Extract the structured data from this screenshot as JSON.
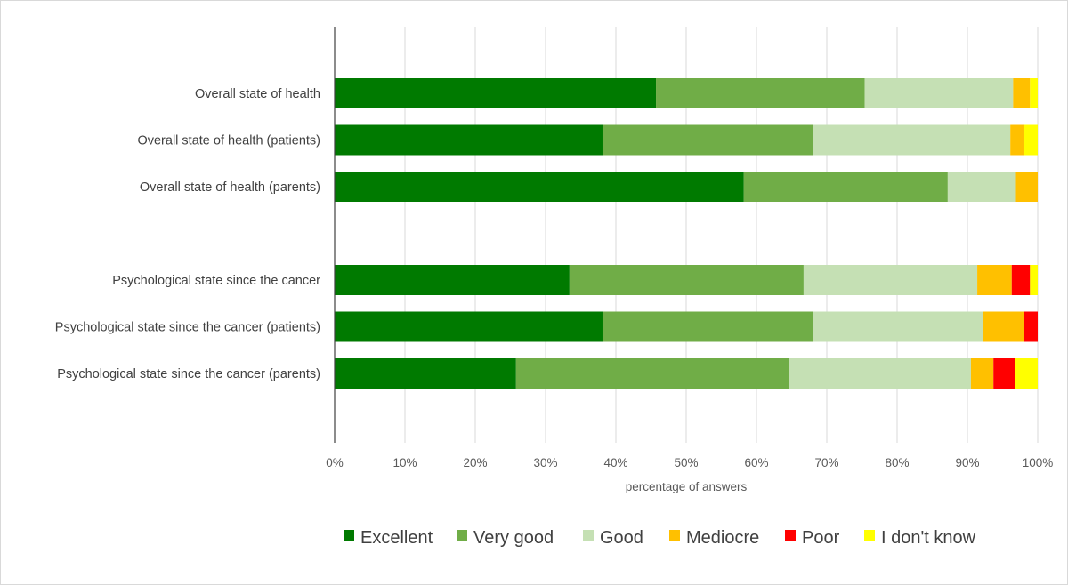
{
  "chart_data": {
    "type": "bar",
    "orientation": "horizontal",
    "stacked": "100%",
    "title": "",
    "xlabel": "percentage of answers",
    "ylabel": "",
    "xlim": [
      0,
      100
    ],
    "x_ticks": [
      "0%",
      "10%",
      "20%",
      "30%",
      "40%",
      "50%",
      "60%",
      "70%",
      "80%",
      "90%",
      "100%"
    ],
    "grid": true,
    "legend_position": "bottom",
    "categories": [
      "Overall state of health",
      "Overall state of health (patients)",
      "Overall state of health (parents)",
      "",
      "Psychological state since the cancer",
      "Psychological state since the cancer (patients)",
      "Psychological state since the cancer (parents)"
    ],
    "series": [
      {
        "name": "Excellent",
        "color": "#007a00",
        "values": [
          45.7,
          38.1,
          58.2,
          null,
          33.4,
          38.1,
          25.8
        ]
      },
      {
        "name": "Very good",
        "color": "#70ad47",
        "values": [
          29.7,
          29.9,
          29.0,
          null,
          33.3,
          30.0,
          38.8
        ]
      },
      {
        "name": "Good",
        "color": "#c5e0b4",
        "values": [
          21.1,
          28.1,
          9.7,
          null,
          24.7,
          24.1,
          25.9
        ]
      },
      {
        "name": "Mediocre",
        "color": "#ffc000",
        "values": [
          2.4,
          2.0,
          3.1,
          null,
          4.9,
          5.9,
          3.2
        ]
      },
      {
        "name": "Poor",
        "color": "#ff0000",
        "values": [
          0,
          0,
          0,
          null,
          2.6,
          1.9,
          3.1
        ]
      },
      {
        "name": "I don't know",
        "color": "#ffff00",
        "values": [
          1.1,
          1.9,
          0,
          null,
          1.1,
          0,
          3.2
        ]
      }
    ]
  }
}
